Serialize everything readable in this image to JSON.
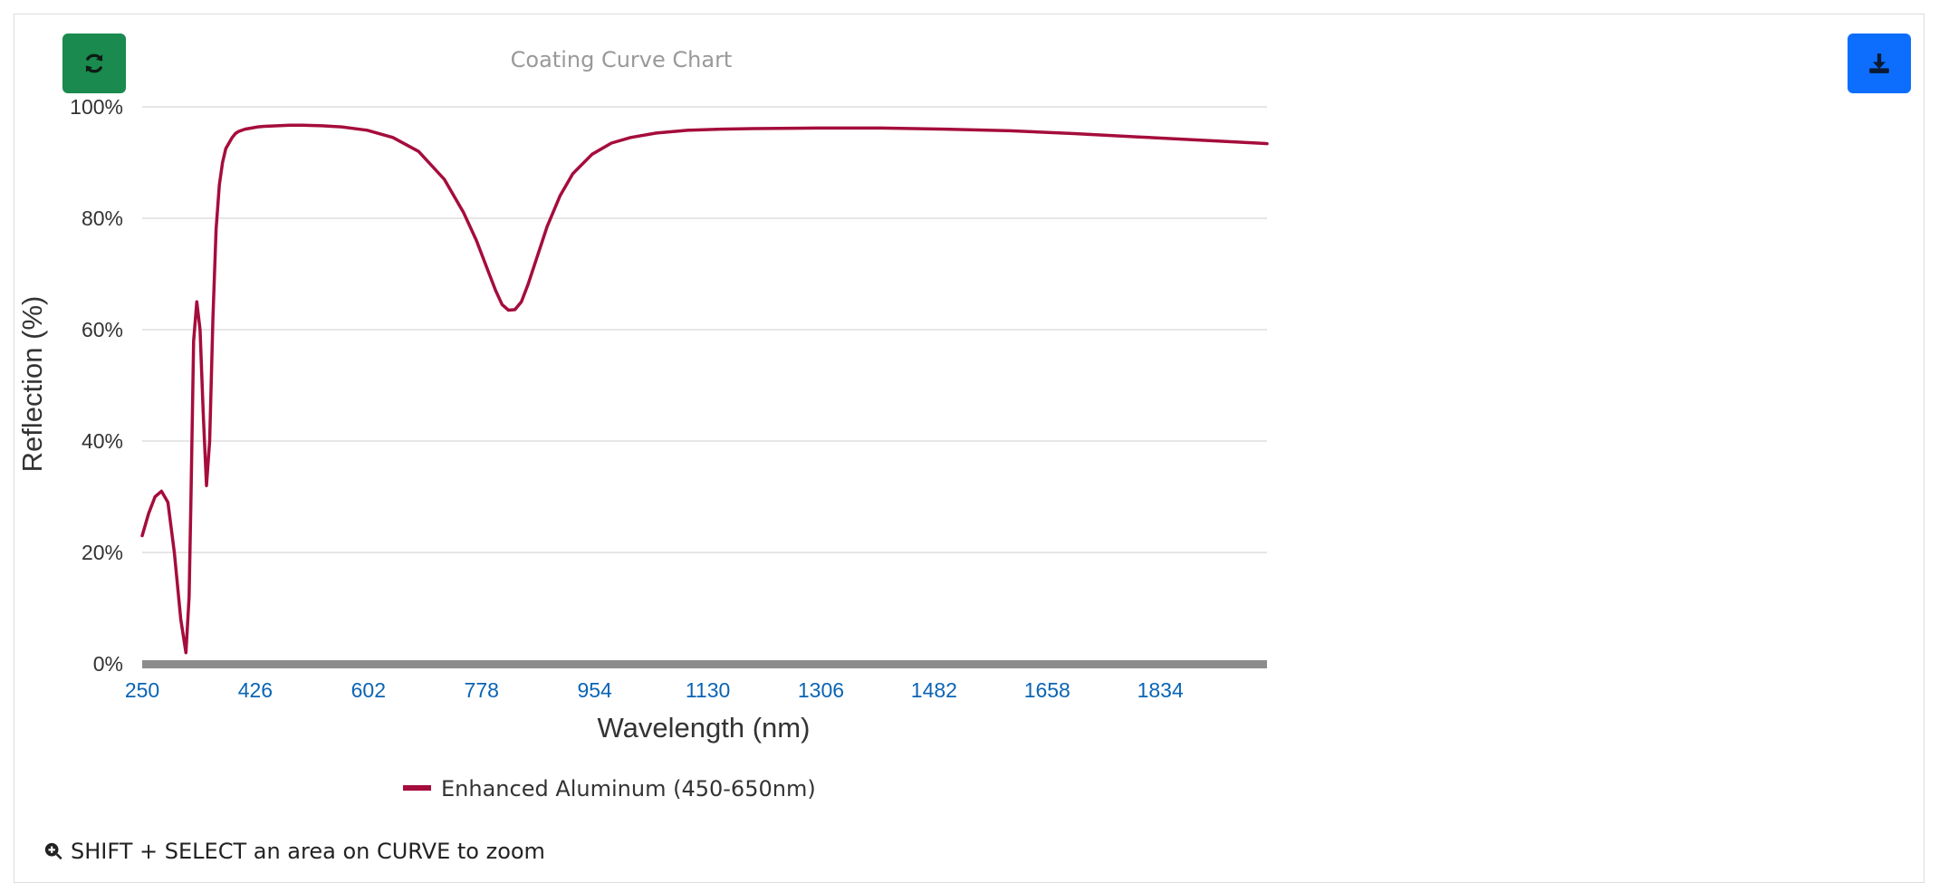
{
  "toolbar": {
    "refresh_icon": "refresh-icon",
    "download_icon": "download-icon",
    "refresh_color": "#1a8a4e",
    "download_color": "#0d6efd"
  },
  "hint": {
    "icon": "zoom-in-icon",
    "text": "SHIFT + SELECT an area on CURVE to zoom"
  },
  "chart_data": {
    "type": "line",
    "title": "Coating Curve Chart",
    "xlabel": "Wavelength (nm)",
    "ylabel": "Reflection (%)",
    "xlim": [
      250,
      2000
    ],
    "ylim": [
      0,
      100
    ],
    "x_ticks": [
      "250",
      "426",
      "602",
      "778",
      "954",
      "1130",
      "1306",
      "1482",
      "1658",
      "1834"
    ],
    "y_ticks": [
      "0%",
      "20%",
      "40%",
      "60%",
      "80%",
      "100%"
    ],
    "grid": true,
    "legend_position": "bottom",
    "series": [
      {
        "name": "Enhanced Aluminum (450-650nm)",
        "color": "#a50d3c",
        "x": [
          250,
          260,
          270,
          280,
          290,
          300,
          310,
          318,
          323,
          326,
          330,
          335,
          340,
          345,
          350,
          355,
          360,
          365,
          370,
          375,
          380,
          385,
          390,
          395,
          400,
          410,
          420,
          430,
          440,
          460,
          480,
          500,
          530,
          560,
          600,
          640,
          680,
          720,
          750,
          770,
          790,
          800,
          810,
          820,
          830,
          840,
          850,
          860,
          870,
          880,
          900,
          920,
          950,
          980,
          1010,
          1050,
          1100,
          1150,
          1200,
          1300,
          1400,
          1500,
          1600,
          1700,
          1800,
          1900,
          2000
        ],
        "y": [
          23,
          27,
          30,
          31,
          29,
          20,
          8,
          2,
          12,
          30,
          58,
          65,
          60,
          45,
          32,
          40,
          62,
          78,
          86,
          90,
          92.5,
          93.5,
          94.5,
          95.2,
          95.6,
          96,
          96.2,
          96.4,
          96.5,
          96.6,
          96.7,
          96.7,
          96.6,
          96.4,
          95.8,
          94.5,
          92,
          87,
          81,
          76,
          70,
          67,
          64.5,
          63.5,
          63.6,
          65,
          68,
          71.5,
          75,
          78.5,
          84,
          88,
          91.5,
          93.5,
          94.5,
          95.3,
          95.8,
          96,
          96.1,
          96.2,
          96.2,
          96,
          95.7,
          95.2,
          94.6,
          94,
          93.4
        ]
      }
    ]
  }
}
